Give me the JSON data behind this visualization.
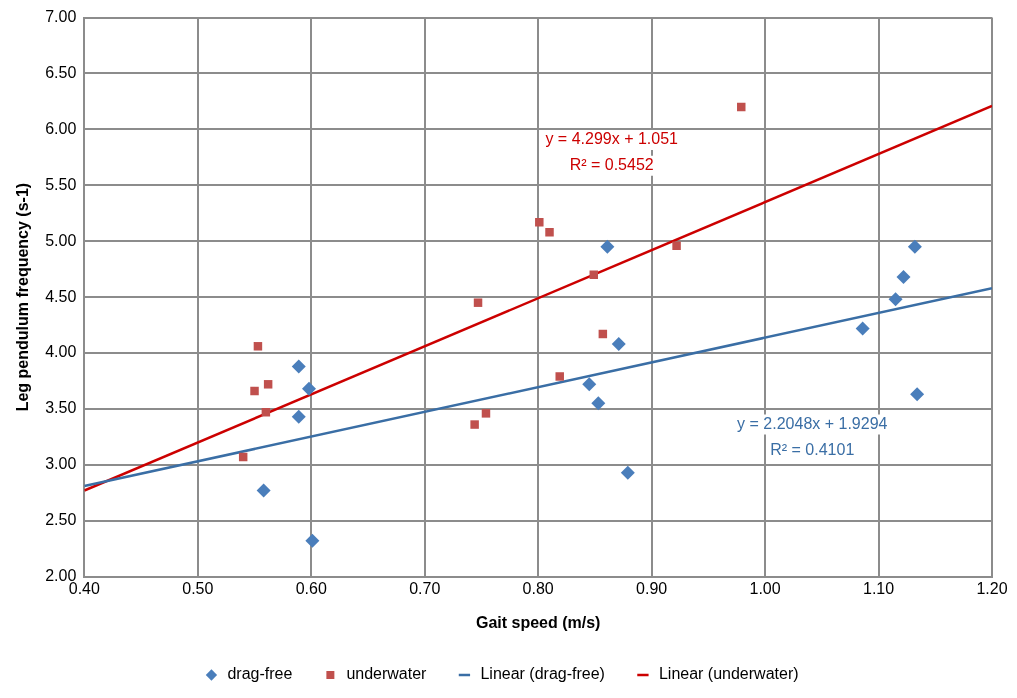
{
  "chart_data": {
    "type": "scatter",
    "xlabel": "Gait speed (m/s)",
    "ylabel": "Leg pendulum frequency (s-1)",
    "xlim": [
      0.4,
      1.2
    ],
    "xticks": [
      {
        "value": 0.4,
        "label": "0.40"
      },
      {
        "value": 0.5,
        "label": "0.50"
      },
      {
        "value": 0.6,
        "label": "0.60"
      },
      {
        "value": 0.7,
        "label": "0.70"
      },
      {
        "value": 0.8,
        "label": "0.80"
      },
      {
        "value": 0.9,
        "label": "0.90"
      },
      {
        "value": 1.0,
        "label": "1.00"
      },
      {
        "value": 1.1,
        "label": "1.10"
      },
      {
        "value": 1.2,
        "label": "1.20"
      }
    ],
    "ylim": [
      2,
      7
    ],
    "yticks": [
      {
        "value": 2,
        "label": "2.00"
      },
      {
        "value": 2.5,
        "label": "2.50"
      },
      {
        "value": 3,
        "label": "3.00"
      },
      {
        "value": 3.5,
        "label": "3.50"
      },
      {
        "value": 4,
        "label": "4.00"
      },
      {
        "value": 4.5,
        "label": "4.50"
      },
      {
        "value": 5,
        "label": "5.00"
      },
      {
        "value": 5.5,
        "label": "5.50"
      },
      {
        "value": 6,
        "label": "6.00"
      },
      {
        "value": 6.5,
        "label": "6.50"
      },
      {
        "value": 7,
        "label": "7.00"
      }
    ],
    "grid": true,
    "legend": "bottom",
    "series": [
      {
        "name": "drag-free",
        "type": "scatter",
        "marker": "diamond",
        "color": "#4a7ebb",
        "x": [
          0.589,
          0.598,
          0.589,
          0.558,
          0.601,
          0.845,
          0.853,
          0.871,
          0.879,
          0.861,
          1.086,
          1.115,
          1.122,
          1.132,
          1.134
        ],
        "values": [
          3.88,
          3.68,
          3.43,
          2.77,
          2.32,
          3.72,
          3.55,
          4.08,
          2.93,
          4.95,
          4.22,
          4.48,
          4.68,
          4.95,
          3.63
        ]
      },
      {
        "name": "underwater",
        "type": "scatter",
        "marker": "square",
        "color": "#c0504d",
        "x": [
          0.553,
          0.55,
          0.562,
          0.56,
          0.54,
          0.744,
          0.754,
          0.819,
          0.857,
          0.801,
          0.81,
          0.849,
          0.922,
          0.979,
          0.747
        ],
        "values": [
          4.06,
          3.66,
          3.72,
          3.47,
          3.07,
          3.36,
          3.46,
          3.79,
          4.17,
          5.17,
          5.08,
          4.7,
          4.96,
          6.2,
          4.45
        ]
      },
      {
        "name": "Linear (drag-free)",
        "type": "line",
        "marker": "none",
        "color": "#3a6ea5",
        "x": [
          0.4,
          1.2
        ],
        "values": [
          2.81,
          4.58
        ]
      },
      {
        "name": "Linear (underwater)",
        "type": "line",
        "marker": "none",
        "color": "#cc0000",
        "x": [
          0.4,
          1.2
        ],
        "values": [
          2.77,
          6.21
        ]
      }
    ],
    "annotations": [
      "y = 4.299x + 1.051",
      "R² = 0.5452",
      "y = 2.2048x + 1.9294",
      "R² = 0.4101"
    ]
  }
}
